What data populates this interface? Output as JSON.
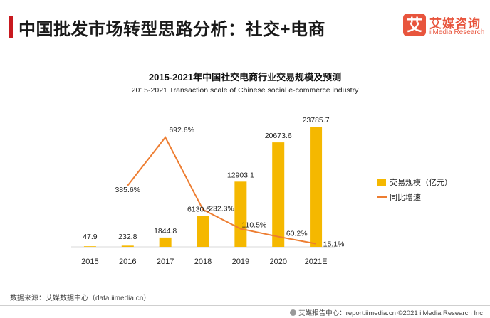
{
  "header": {
    "title": "中国批发市场转型思路分析：社交+电商",
    "logo_mark": "艾",
    "logo_cn": "艾媒咨询",
    "logo_en": "iiMedia Research"
  },
  "chart_data": {
    "type": "bar",
    "title": "2015-2021年中国社交电商行业交易规模及预测",
    "subtitle": "2015-2021 Transaction scale  of Chinese social e-commerce industry",
    "categories": [
      "2015",
      "2016",
      "2017",
      "2018",
      "2019",
      "2020",
      "2021E"
    ],
    "series": [
      {
        "name": "交易规模（亿元）",
        "type": "bar",
        "color": "#f5b800",
        "values": [
          47.9,
          232.8,
          1844.8,
          6130.6,
          12903.1,
          20673.6,
          23785.7
        ],
        "labels": [
          "47.9",
          "232.8",
          "1844.8",
          "6130.6",
          "12903.1",
          "20673.6",
          "23785.7"
        ]
      },
      {
        "name": "同比增速",
        "type": "line",
        "color": "#ed7d31",
        "values": [
          null,
          385.6,
          692.6,
          232.3,
          110.5,
          60.2,
          15.1
        ],
        "labels": [
          "",
          "385.6%",
          "692.6%",
          "232.3%",
          "110.5%",
          "60.2%",
          "15.1%"
        ]
      }
    ],
    "legend_position": "right",
    "grid": false
  },
  "footer": {
    "source": "数据来源：艾媒数据中心（data.iimedia.cn）",
    "right": "艾媒报告中心：report.iimedia.cn   ©2021  iiMedia Research  Inc"
  }
}
